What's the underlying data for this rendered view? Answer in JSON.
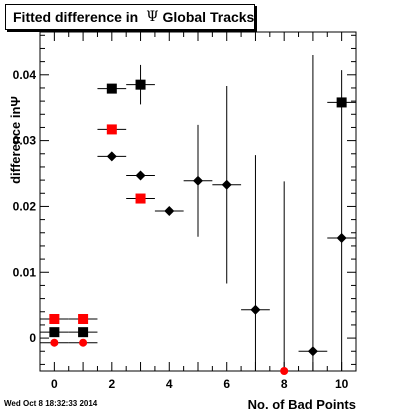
{
  "title_pre": "Fitted difference in",
  "title_symbol": "Ψ",
  "title_post": "Global Tracks",
  "timestamp": "Wed Oct  8 18:32:33 2014",
  "chart_data": {
    "type": "scatter",
    "title": "Fitted difference in Ψ Global Tracks",
    "xlabel": "No. of Bad Points",
    "ylabel": "difference inΨ",
    "xlim": [
      -0.5,
      10.5
    ],
    "ylim": [
      -0.005,
      0.0465
    ],
    "xticks": [
      0,
      2,
      4,
      6,
      8,
      10
    ],
    "yticks": [
      0,
      0.01,
      0.02,
      0.03,
      0.04
    ],
    "ytick_labels": [
      "0",
      "0.01",
      "0.02",
      "0.03",
      "0.04"
    ],
    "grid": false,
    "series": [
      {
        "marker": "square",
        "color": "#000000",
        "points": [
          {
            "x": 0,
            "y": 0.0009,
            "xerr": 0.5,
            "yerr": 0.0
          },
          {
            "x": 1,
            "y": 0.0009,
            "xerr": 0.5,
            "yerr": 0.0
          },
          {
            "x": 2,
            "y": 0.0379,
            "xerr": 0.5,
            "yerr": 0.0
          },
          {
            "x": 3,
            "y": 0.0385,
            "xerr": 0.5,
            "yerr": 0.003
          },
          {
            "x": 10,
            "y": 0.0358,
            "xerr": 0.5,
            "yerr": 0.0
          }
        ]
      },
      {
        "marker": "diamond",
        "color": "#000000",
        "points": [
          {
            "x": 2,
            "y": 0.0276,
            "xerr": 0.5,
            "yerr": 0.0
          },
          {
            "x": 3,
            "y": 0.0247,
            "xerr": 0.5,
            "yerr": 0.0
          },
          {
            "x": 4,
            "y": 0.0193,
            "xerr": 0.5,
            "yerr": 0.0
          },
          {
            "x": 5,
            "y": 0.0239,
            "xerr": 0.5,
            "yerr": 0.0085
          },
          {
            "x": 6,
            "y": 0.0233,
            "xerr": 0.5,
            "yerr": 0.015
          },
          {
            "x": 7,
            "y": 0.0043,
            "xerr": 0.5,
            "yerr": 0.0235
          },
          {
            "x": 9,
            "y": -0.002,
            "xerr": 0.5,
            "yerr": 0.045
          },
          {
            "x": 10,
            "y": 0.0152,
            "xerr": 0.5,
            "yerr": 0.0255
          }
        ]
      },
      {
        "marker": "square",
        "color": "#ff0000",
        "points": [
          {
            "x": 0,
            "y": 0.0029,
            "xerr": 0.5,
            "yerr": 0.0
          },
          {
            "x": 1,
            "y": 0.0029,
            "xerr": 0.5,
            "yerr": 0.0
          },
          {
            "x": 2,
            "y": 0.0317,
            "xerr": 0.5,
            "yerr": 0.0
          },
          {
            "x": 3,
            "y": 0.0212,
            "xerr": 0.5,
            "yerr": 0.0
          }
        ]
      },
      {
        "marker": "circle",
        "color": "#ff0000",
        "points": [
          {
            "x": 0,
            "y": -0.0007,
            "xerr": 0.5,
            "yerr": 0.0
          },
          {
            "x": 1,
            "y": -0.0007,
            "xerr": 0.5,
            "yerr": 0.0
          },
          {
            "x": 8,
            "y": -0.005,
            "xerr": 0.0,
            "yerr": 0.0
          }
        ]
      },
      {
        "marker": "none",
        "color": "#000000",
        "points": [
          {
            "x": 8,
            "y": -0.005,
            "xerr": 0.0,
            "yerr": 0.0288
          }
        ]
      }
    ]
  }
}
